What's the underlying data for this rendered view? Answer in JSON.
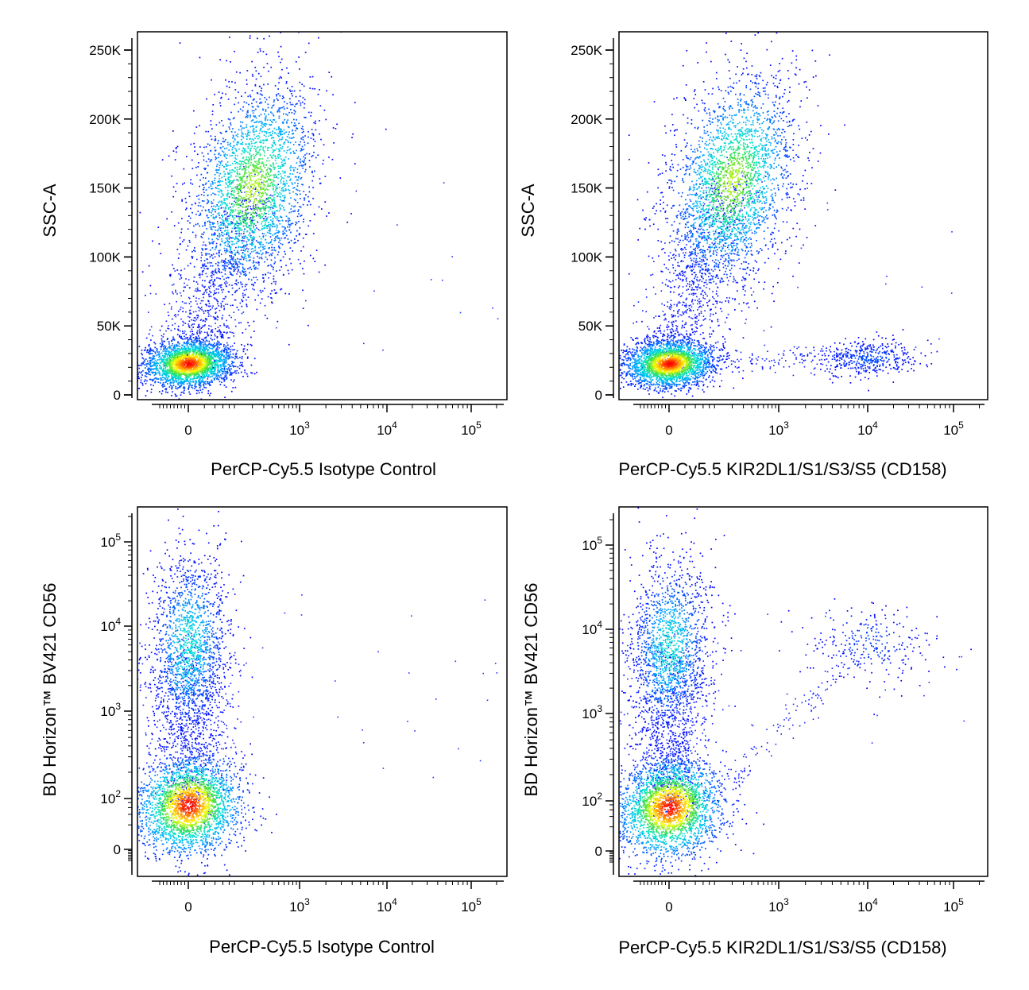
{
  "chart_data": [
    {
      "type": "scatter",
      "panel": "top-left",
      "xlabel": "PerCP-Cy5.5 Isotype Control",
      "ylabel": "SSC-A",
      "x_scale": "biexponential",
      "y_scale": "linear",
      "x_ticks": [
        {
          "value": 0,
          "label": "0"
        },
        {
          "value": 1000,
          "base": "10",
          "exp": "3"
        },
        {
          "value": 10000,
          "base": "10",
          "exp": "4"
        },
        {
          "value": 100000,
          "base": "10",
          "exp": "5"
        }
      ],
      "y_ticks": [
        {
          "value": 0,
          "label": "0"
        },
        {
          "value": 50000,
          "label": "50K"
        },
        {
          "value": 100000,
          "label": "100K"
        },
        {
          "value": 150000,
          "label": "150K"
        },
        {
          "value": 200000,
          "label": "200K"
        },
        {
          "value": 250000,
          "label": "250K"
        }
      ],
      "colormap": "density (blue-cyan-green-yellow-red)",
      "populations": [
        {
          "x_center": 0,
          "y_center": 23000,
          "density": "highest"
        },
        {
          "x_center": 200,
          "y_center": 150000,
          "density": "high"
        }
      ]
    },
    {
      "type": "scatter",
      "panel": "top-right",
      "xlabel": "PerCP-Cy5.5  KIR2DL1/S1/S3/S5 (CD158)",
      "ylabel": "SSC-A",
      "x_scale": "biexponential",
      "y_scale": "linear",
      "x_ticks": [
        {
          "value": 0,
          "label": "0"
        },
        {
          "value": 1000,
          "base": "10",
          "exp": "3"
        },
        {
          "value": 10000,
          "base": "10",
          "exp": "4"
        },
        {
          "value": 100000,
          "base": "10",
          "exp": "5"
        }
      ],
      "y_ticks": [
        {
          "value": 0,
          "label": "0"
        },
        {
          "value": 50000,
          "label": "50K"
        },
        {
          "value": 100000,
          "label": "100K"
        },
        {
          "value": 150000,
          "label": "150K"
        },
        {
          "value": 200000,
          "label": "200K"
        },
        {
          "value": 250000,
          "label": "250K"
        }
      ],
      "colormap": "density (blue-cyan-green-yellow-red)",
      "populations": [
        {
          "x_center": 0,
          "y_center": 23000,
          "density": "highest"
        },
        {
          "x_center": 200,
          "y_center": 155000,
          "density": "high"
        },
        {
          "x_center": 10000,
          "y_center": 27000,
          "density": "low"
        }
      ]
    },
    {
      "type": "scatter",
      "panel": "bottom-left",
      "xlabel": "PerCP-Cy5.5 Isotype Control",
      "ylabel": "BD Horizon™ BV421 CD56",
      "x_scale": "biexponential",
      "y_scale": "biexponential",
      "x_ticks": [
        {
          "value": 0,
          "label": "0"
        },
        {
          "value": 1000,
          "base": "10",
          "exp": "3"
        },
        {
          "value": 10000,
          "base": "10",
          "exp": "4"
        },
        {
          "value": 100000,
          "base": "10",
          "exp": "5"
        }
      ],
      "y_ticks": [
        {
          "value": 0,
          "label": "0"
        },
        {
          "value": 100,
          "base": "10",
          "exp": "2"
        },
        {
          "value": 1000,
          "base": "10",
          "exp": "3"
        },
        {
          "value": 10000,
          "base": "10",
          "exp": "4"
        },
        {
          "value": 100000,
          "base": "10",
          "exp": "5"
        }
      ],
      "colormap": "density (blue-cyan-green-yellow-red)",
      "populations": [
        {
          "x_center": 0,
          "y_center": 70,
          "density": "highest"
        },
        {
          "x_center": 0,
          "y_center": 6000,
          "density": "medium"
        }
      ]
    },
    {
      "type": "scatter",
      "panel": "bottom-right",
      "xlabel": "PerCP-Cy5.5  KIR2DL1/S1/S3/S5 (CD158)",
      "ylabel": "BD Horizon™ BV421 CD56",
      "x_scale": "biexponential",
      "y_scale": "biexponential",
      "x_ticks": [
        {
          "value": 0,
          "label": "0"
        },
        {
          "value": 1000,
          "base": "10",
          "exp": "3"
        },
        {
          "value": 10000,
          "base": "10",
          "exp": "4"
        },
        {
          "value": 100000,
          "base": "10",
          "exp": "5"
        }
      ],
      "y_ticks": [
        {
          "value": 0,
          "label": "0"
        },
        {
          "value": 100,
          "base": "10",
          "exp": "2"
        },
        {
          "value": 1000,
          "base": "10",
          "exp": "3"
        },
        {
          "value": 10000,
          "base": "10",
          "exp": "4"
        },
        {
          "value": 100000,
          "base": "10",
          "exp": "5"
        }
      ],
      "colormap": "density (blue-cyan-green-yellow-red)",
      "populations": [
        {
          "x_center": 0,
          "y_center": 70,
          "density": "highest"
        },
        {
          "x_center": 0,
          "y_center": 6000,
          "density": "medium"
        },
        {
          "x_center": 10000,
          "y_center": 7000,
          "density": "low"
        }
      ]
    }
  ]
}
